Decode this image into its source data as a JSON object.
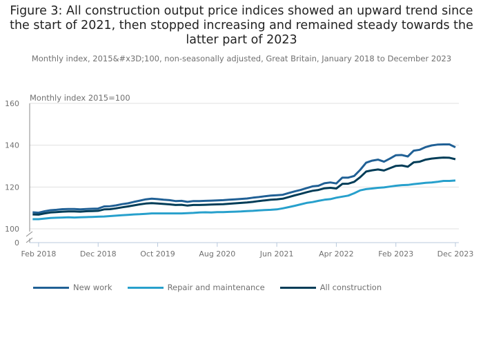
{
  "chart_data": {
    "type": "line",
    "title": "Figure 3: All construction output price indices showed an upward trend since the start of 2021, then stopped increasing and remained steady towards the latter part of 2023",
    "subtitle": "Monthly index, 2015&#x3D;100, non-seasonally adjusted, Great Britain, January 2018 to December 2023",
    "ylabel": "Monthly index 2015=100",
    "xlabel": "",
    "ylim": [
      0,
      160
    ],
    "y_axis_break": [
      0,
      100
    ],
    "yticks": [
      "160",
      "140",
      "120",
      "100",
      "0"
    ],
    "ytick_values": [
      160,
      140,
      120,
      100,
      0
    ],
    "xticks": [
      "Feb 2018",
      "Dec 2018",
      "Oct 2019",
      "Aug 2020",
      "Jun 2021",
      "Apr 2022",
      "Feb 2023",
      "Dec 2023"
    ],
    "xtick_month_index": [
      1,
      11,
      21,
      31,
      41,
      51,
      61,
      71
    ],
    "x_start": "Jan 2018",
    "x_end": "Dec 2023",
    "grid": true,
    "legend_position": "bottom",
    "series": [
      {
        "name": "New work",
        "color": "#206095",
        "values": [
          107.9,
          107.7,
          108.4,
          108.9,
          109.1,
          109.4,
          109.5,
          109.5,
          109.3,
          109.5,
          109.6,
          109.7,
          110.7,
          110.8,
          111.2,
          111.8,
          112.2,
          112.9,
          113.5,
          114.1,
          114.4,
          114.2,
          113.9,
          113.7,
          113.3,
          113.4,
          112.9,
          113.3,
          113.3,
          113.4,
          113.5,
          113.6,
          113.7,
          113.9,
          114.1,
          114.3,
          114.5,
          114.9,
          115.2,
          115.6,
          115.9,
          116.1,
          116.3,
          117.1,
          117.9,
          118.6,
          119.5,
          120.3,
          120.6,
          121.8,
          122.2,
          121.7,
          124.5,
          124.5,
          125.3,
          128.2,
          131.6,
          132.6,
          133.1,
          132.1,
          133.6,
          135.2,
          135.3,
          134.6,
          137.4,
          137.8,
          139.1,
          139.9,
          140.3,
          140.4,
          140.4,
          139.0
        ]
      },
      {
        "name": "Repair and maintenance",
        "color": "#27a0cc",
        "values": [
          104.6,
          104.6,
          104.9,
          105.2,
          105.3,
          105.4,
          105.5,
          105.4,
          105.5,
          105.6,
          105.7,
          105.8,
          105.9,
          106.1,
          106.3,
          106.5,
          106.7,
          106.9,
          107.0,
          107.2,
          107.4,
          107.4,
          107.4,
          107.4,
          107.4,
          107.4,
          107.5,
          107.6,
          107.8,
          107.9,
          107.8,
          108.0,
          108.0,
          108.1,
          108.2,
          108.3,
          108.5,
          108.6,
          108.8,
          109.0,
          109.1,
          109.3,
          109.8,
          110.4,
          111.0,
          111.7,
          112.4,
          112.8,
          113.4,
          113.9,
          114.2,
          114.9,
          115.4,
          115.9,
          117.0,
          118.4,
          119.0,
          119.3,
          119.6,
          119.8,
          120.2,
          120.6,
          120.9,
          121.0,
          121.4,
          121.7,
          122.0,
          122.2,
          122.5,
          122.9,
          122.9,
          123.1
        ]
      },
      {
        "name": "All construction",
        "color": "#003c57",
        "values": [
          106.9,
          106.8,
          107.4,
          107.8,
          108.0,
          108.2,
          108.3,
          108.3,
          108.2,
          108.4,
          108.5,
          108.6,
          109.3,
          109.4,
          109.8,
          110.3,
          110.7,
          111.2,
          111.7,
          112.1,
          112.3,
          112.1,
          111.9,
          111.7,
          111.4,
          111.5,
          111.1,
          111.4,
          111.4,
          111.5,
          111.6,
          111.7,
          111.8,
          112.0,
          112.2,
          112.4,
          112.6,
          112.9,
          113.3,
          113.6,
          113.9,
          114.1,
          114.4,
          115.2,
          116.0,
          116.7,
          117.5,
          118.2,
          118.6,
          119.4,
          119.6,
          119.3,
          121.5,
          121.6,
          122.5,
          124.7,
          127.4,
          128.0,
          128.4,
          127.9,
          129.0,
          130.1,
          130.3,
          129.7,
          131.8,
          132.1,
          133.1,
          133.6,
          133.9,
          134.1,
          134.0,
          133.3
        ]
      }
    ]
  }
}
